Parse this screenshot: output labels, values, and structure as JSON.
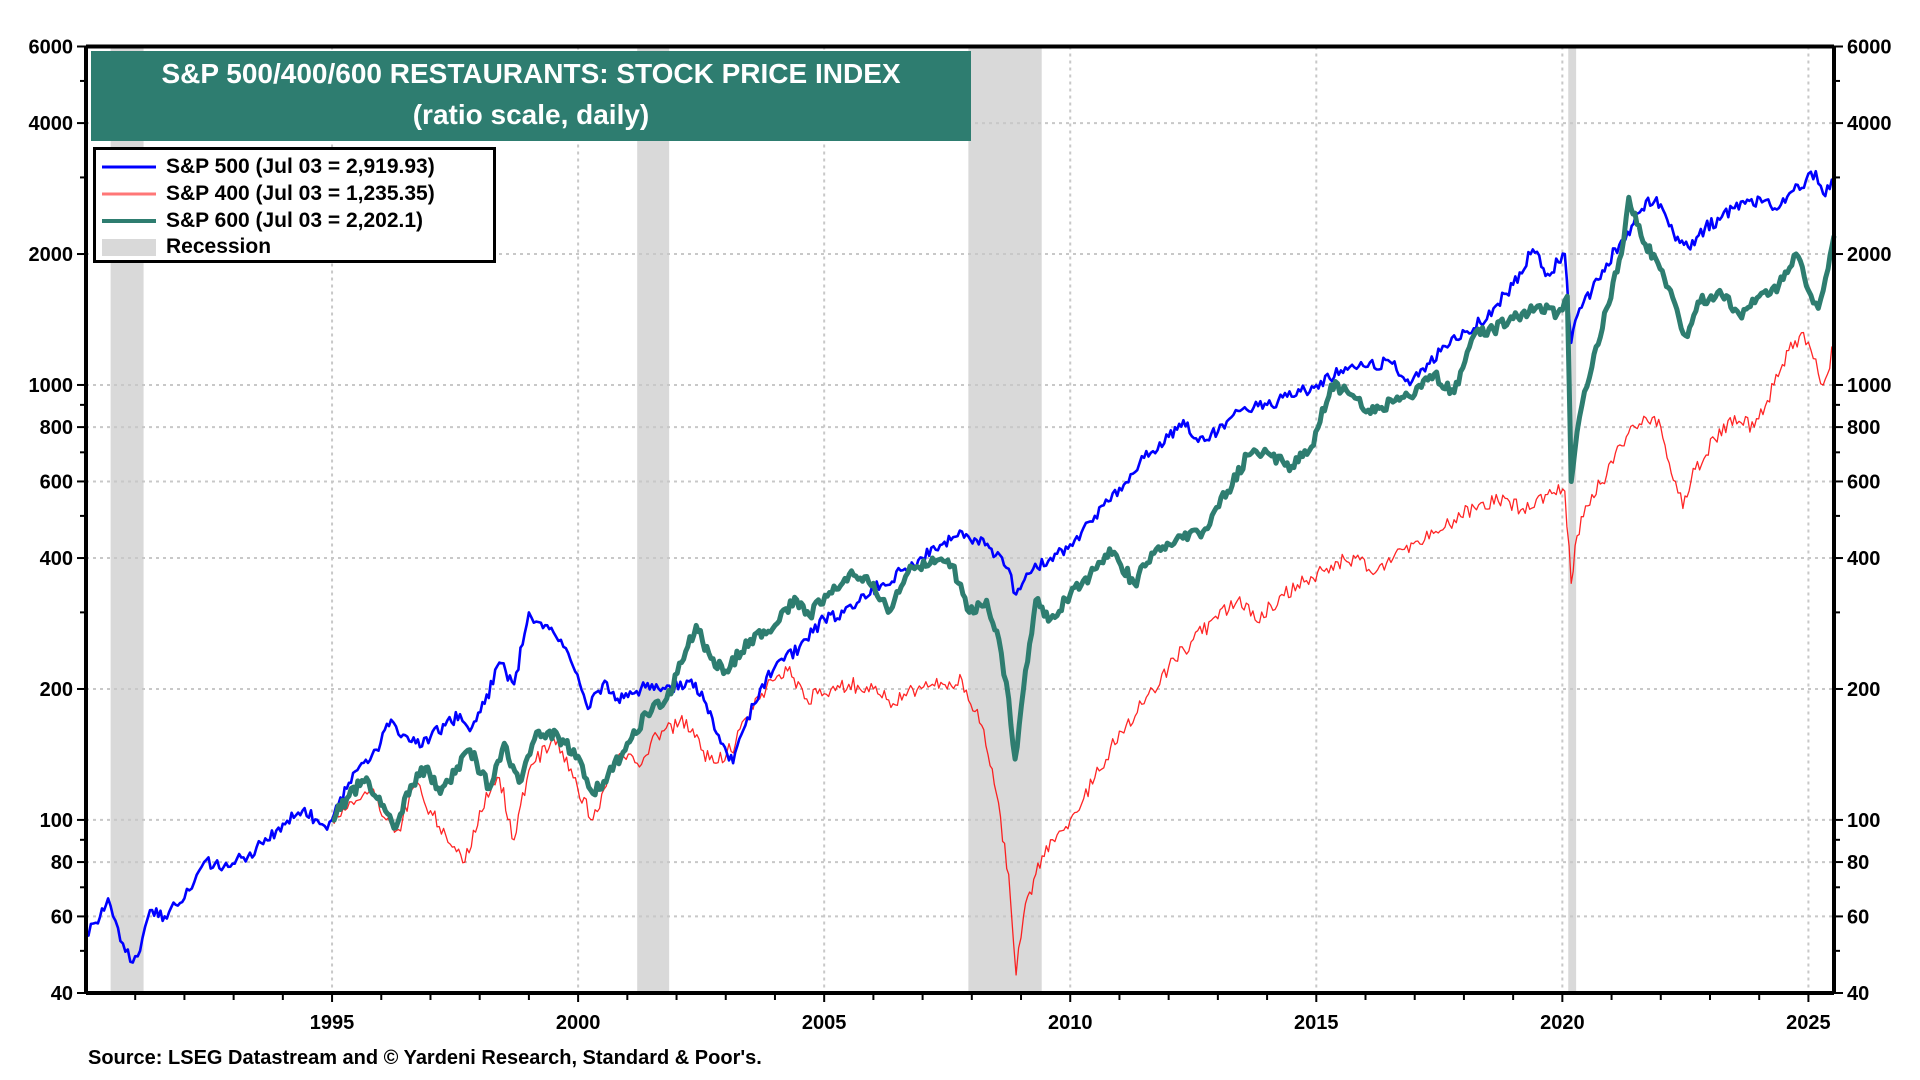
{
  "chart_data": {
    "type": "line",
    "title": "S&P 500/400/600 RESTAURANTS: STOCK PRICE INDEX",
    "subtitle": "(ratio scale, daily)",
    "xlabel": "",
    "ylabel": "",
    "yscale": "log",
    "ylim": [
      40,
      6000
    ],
    "xlim": [
      1990.0,
      2025.52
    ],
    "grid": true,
    "legend_position": "top-left",
    "y_ticks": [
      40,
      60,
      80,
      100,
      200,
      400,
      600,
      800,
      1000,
      2000,
      4000,
      6000
    ],
    "y_tick_labels": [
      "40",
      "60",
      "80",
      "100",
      "200",
      "400",
      "600",
      "800",
      "1000",
      "2000",
      "4000",
      "6000"
    ],
    "y_minor_ticks": [
      50,
      70,
      90,
      300,
      500,
      700,
      900,
      3000,
      5000
    ],
    "y_gridlines": [
      60,
      80,
      100,
      200,
      400,
      600,
      800,
      1000,
      2000,
      4000
    ],
    "x_ticks": [
      1995,
      2000,
      2005,
      2010,
      2015,
      2020,
      2025
    ],
    "x_tick_labels": [
      "1995",
      "2000",
      "2005",
      "2010",
      "2015",
      "2020",
      "2025"
    ],
    "x_minor_ticks": [
      1991,
      1992,
      1993,
      1994,
      1996,
      1997,
      1998,
      1999,
      2001,
      2002,
      2003,
      2004,
      2006,
      2007,
      2008,
      2009,
      2011,
      2012,
      2013,
      2014,
      2016,
      2017,
      2018,
      2019,
      2021,
      2022,
      2023,
      2024
    ],
    "recessions": [
      {
        "start": 1990.5,
        "end": 1991.17
      },
      {
        "start": 2001.2,
        "end": 2001.85
      },
      {
        "start": 2007.93,
        "end": 2009.42
      },
      {
        "start": 2020.12,
        "end": 2020.28
      }
    ],
    "series": [
      {
        "name": "S&P 500",
        "legend_label": "S&P 500 (Jul 03 = 2,919.93)",
        "last_value": 2919.93,
        "color": "#0000ff",
        "x": [
          1990.0,
          1990.2,
          1990.45,
          1990.55,
          1990.75,
          1990.95,
          1991.1,
          1991.3,
          1991.6,
          1992.0,
          1992.2,
          1992.4,
          1992.8,
          1993.2,
          1993.6,
          1994.0,
          1994.4,
          1994.7,
          1994.9,
          1995.0,
          1995.3,
          1995.6,
          1995.9,
          1996.2,
          1996.4,
          1996.7,
          1997.0,
          1997.3,
          1997.6,
          1997.8,
          1998.1,
          1998.4,
          1998.7,
          1999.0,
          1999.2,
          1999.5,
          1999.7,
          1999.9,
          2000.2,
          2000.5,
          2000.8,
          2001.1,
          2001.5,
          2001.9,
          2002.3,
          2002.6,
          2002.9,
          2003.15,
          2003.4,
          2003.7,
          2004.0,
          2004.5,
          2005.0,
          2005.4,
          2005.8,
          2006.2,
          2006.6,
          2007.0,
          2007.4,
          2007.8,
          2008.1,
          2008.4,
          2008.7,
          2008.9,
          2009.2,
          2009.6,
          2010.0,
          2010.5,
          2011.0,
          2011.5,
          2012.0,
          2012.3,
          2012.6,
          2013.0,
          2013.5,
          2014.0,
          2014.5,
          2015.0,
          2015.5,
          2016.0,
          2016.5,
          2016.9,
          2017.3,
          2017.8,
          2018.2,
          2018.6,
          2019.0,
          2019.4,
          2019.7,
          2020.05,
          2020.18,
          2020.35,
          2020.6,
          2020.9,
          2021.2,
          2021.45,
          2021.7,
          2022.0,
          2022.3,
          2022.6,
          2022.9,
          2023.2,
          2023.5,
          2023.8,
          2024.1,
          2024.4,
          2024.7,
          2024.95,
          2025.15,
          2025.3,
          2025.52
        ],
        "values": [
          55,
          58,
          66,
          60,
          52,
          47,
          50,
          62,
          60,
          66,
          72,
          80,
          78,
          82,
          88,
          98,
          105,
          100,
          95,
          100,
          118,
          135,
          145,
          170,
          155,
          150,
          155,
          165,
          175,
          160,
          185,
          230,
          205,
          300,
          285,
          270,
          250,
          225,
          180,
          205,
          190,
          195,
          205,
          200,
          210,
          185,
          150,
          135,
          165,
          200,
          225,
          250,
          290,
          300,
          330,
          350,
          375,
          400,
          430,
          460,
          440,
          420,
          380,
          330,
          370,
          400,
          430,
          500,
          580,
          680,
          760,
          830,
          740,
          780,
          880,
          900,
          940,
          1000,
          1080,
          1100,
          1130,
          1000,
          1120,
          1300,
          1350,
          1500,
          1700,
          2050,
          1800,
          2000,
          1250,
          1500,
          1650,
          1900,
          2150,
          2350,
          2650,
          2600,
          2150,
          2050,
          2300,
          2400,
          2550,
          2650,
          2650,
          2550,
          2800,
          2950,
          3100,
          2750,
          2920
        ]
      },
      {
        "name": "S&P 400",
        "legend_label": "S&P 400 (Jul 03 = 1,235.35)",
        "last_value": 1235.35,
        "color": "#ff0000",
        "x": [
          1995.0,
          1995.4,
          1995.8,
          1996.1,
          1996.35,
          1996.7,
          1997.0,
          1997.4,
          1997.7,
          1998.0,
          1998.4,
          1998.7,
          1999.0,
          1999.5,
          1999.9,
          2000.3,
          2000.8,
          2001.2,
          2001.7,
          2002.2,
          2002.5,
          2002.8,
          2003.2,
          2003.6,
          2004.0,
          2004.3,
          2004.6,
          2005.0,
          2005.5,
          2006.0,
          2006.4,
          2006.8,
          2007.2,
          2007.5,
          2007.8,
          2008.2,
          2008.5,
          2008.75,
          2008.9,
          2009.05,
          2009.3,
          2009.6,
          2010.0,
          2010.5,
          2011.0,
          2011.5,
          2012.0,
          2012.5,
          2013.0,
          2013.4,
          2013.8,
          2014.3,
          2014.8,
          2015.3,
          2015.8,
          2016.2,
          2016.7,
          2017.2,
          2017.8,
          2018.3,
          2018.7,
          2019.2,
          2019.7,
          2020.05,
          2020.18,
          2020.3,
          2020.6,
          2020.9,
          2021.3,
          2021.7,
          2022.0,
          2022.3,
          2022.45,
          2022.7,
          2023.1,
          2023.5,
          2023.9,
          2024.3,
          2024.6,
          2024.9,
          2025.1,
          2025.3,
          2025.52
        ],
        "values": [
          100,
          110,
          118,
          100,
          95,
          120,
          105,
          88,
          80,
          105,
          125,
          90,
          130,
          155,
          125,
          100,
          140,
          135,
          160,
          170,
          145,
          135,
          150,
          190,
          210,
          225,
          190,
          195,
          205,
          200,
          185,
          200,
          205,
          200,
          210,
          165,
          115,
          75,
          44,
          60,
          75,
          90,
          100,
          125,
          160,
          185,
          225,
          260,
          290,
          320,
          285,
          330,
          355,
          385,
          400,
          370,
          420,
          440,
          490,
          530,
          540,
          520,
          560,
          570,
          350,
          450,
          560,
          620,
          760,
          840,
          800,
          600,
          520,
          640,
          750,
          850,
          800,
          1000,
          1200,
          1320,
          1150,
          1000,
          1235
        ]
      },
      {
        "name": "S&P 600",
        "legend_label": "S&P 600 (Jul 03 = 2,202.1)",
        "last_value": 2202.1,
        "color": "#2e7d70",
        "x": [
          1995.0,
          1995.3,
          1995.7,
          1996.0,
          1996.3,
          1996.6,
          1996.9,
          1997.2,
          1997.5,
          1997.8,
          1998.2,
          1998.5,
          1998.8,
          1999.2,
          1999.6,
          2000.0,
          2000.3,
          2000.7,
          2001.0,
          2001.4,
          2001.8,
          2002.1,
          2002.4,
          2002.7,
          2003.0,
          2003.5,
          2004.0,
          2004.4,
          2004.7,
          2005.2,
          2005.6,
          2006.0,
          2006.3,
          2006.7,
          2007.2,
          2007.6,
          2007.95,
          2008.3,
          2008.55,
          2008.75,
          2008.88,
          2009.05,
          2009.3,
          2009.6,
          2010.0,
          2010.4,
          2010.8,
          2011.3,
          2011.7,
          2012.2,
          2012.7,
          2013.2,
          2013.6,
          2014.0,
          2014.5,
          2014.9,
          2015.3,
          2015.7,
          2016.1,
          2016.6,
          2017.0,
          2017.4,
          2017.8,
          2018.2,
          2018.6,
          2019.0,
          2019.5,
          2019.9,
          2020.1,
          2020.18,
          2020.25,
          2020.4,
          2020.6,
          2020.9,
          2021.2,
          2021.35,
          2021.6,
          2021.9,
          2022.2,
          2022.5,
          2022.8,
          2023.2,
          2023.6,
          2024.0,
          2024.4,
          2024.75,
          2025.0,
          2025.2,
          2025.4,
          2025.52
        ],
        "values": [
          100,
          112,
          125,
          108,
          96,
          120,
          132,
          115,
          128,
          145,
          118,
          150,
          122,
          160,
          155,
          140,
          115,
          130,
          150,
          175,
          190,
          230,
          280,
          235,
          220,
          260,
          280,
          325,
          295,
          345,
          365,
          350,
          300,
          370,
          400,
          385,
          300,
          320,
          260,
          190,
          138,
          200,
          320,
          290,
          330,
          365,
          420,
          350,
          410,
          450,
          460,
          570,
          690,
          700,
          650,
          720,
          1000,
          950,
          860,
          920,
          950,
          1060,
          960,
          1300,
          1340,
          1420,
          1520,
          1460,
          1600,
          600,
          700,
          900,
          1100,
          1500,
          2000,
          2700,
          2200,
          1950,
          1650,
          1300,
          1550,
          1650,
          1450,
          1600,
          1700,
          2000,
          1650,
          1500,
          1850,
          2202
        ]
      }
    ],
    "legend": [
      {
        "label": "S&P 500 (Jul 03 = 2,919.93)",
        "color": "#0000ff",
        "kind": "line"
      },
      {
        "label": "S&P 400 (Jul 03 = 1,235.35)",
        "color": "#ff7777",
        "kind": "line"
      },
      {
        "label": "S&P 600 (Jul 03 = 2,202.1)",
        "color": "#2e7d70",
        "kind": "line"
      },
      {
        "label": "Recession",
        "color": "#d9d9d9",
        "kind": "box"
      }
    ],
    "source": "Source: LSEG Datastream and © Yardeni Research, Standard & Poor's."
  }
}
